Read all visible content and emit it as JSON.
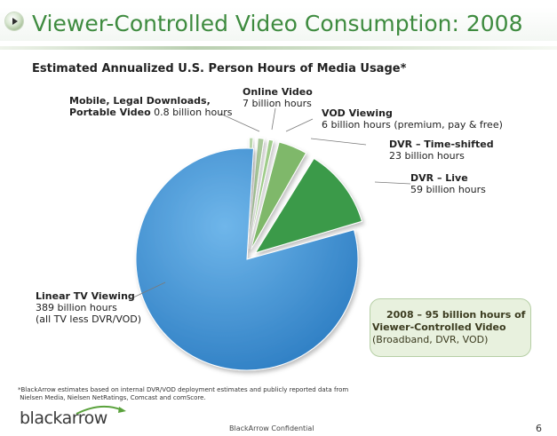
{
  "slide": {
    "title": "Viewer-Controlled Video Consumption: 2008",
    "subtitle": "Estimated Annualized U.S. Person Hours of Media Usage*",
    "footnote_line1": "*BlackArrow estimates based on internal DVR/VOD deployment estimates and publicly reported data from",
    "footnote_line2": "Nielsen Media, Nielsen NetRatings, Comcast and comScore.",
    "logo_text": "blackarrow",
    "confidential": "BlackArrow Confidential",
    "page_number": "6"
  },
  "labels": {
    "mobile_title_1": "Mobile, Legal Downloads,",
    "mobile_title_2": "Portable Video",
    "mobile_value": "0.8 billion hours",
    "online_title": "Online Video",
    "online_value": "7 billion hours",
    "vod_title": "VOD Viewing",
    "vod_value": "6 billion hours (premium, pay & free)",
    "dvr_shift_title": "DVR – Time-shifted",
    "dvr_shift_value": "23 billion hours",
    "dvr_live_title": "DVR – Live",
    "dvr_live_value": "59 billion hours",
    "linear_title": "Linear TV Viewing",
    "linear_value": "389 billion hours",
    "linear_note": "(all TV less DVR/VOD)"
  },
  "callout": {
    "line1": "2008 – 95 billion hours of",
    "line2": "Viewer-Controlled Video",
    "line3": "(Broadband, DVR, VOD)"
  },
  "colors": {
    "title_green": "#3e8b3f",
    "linear_blue": "#3f8fd0",
    "dvr_live": "#3a9a48",
    "dvr_shift": "#7fb86b",
    "vod": "#9fcc8a",
    "online": "#a9c99a",
    "mobile": "#b9d6ab"
  },
  "chart_data": {
    "type": "pie",
    "title": "Estimated Annualized U.S. Person Hours of Media Usage*",
    "unit": "billion hours",
    "slices": [
      {
        "label": "Mobile, Legal Downloads, Portable Video",
        "value": 0.8,
        "color": "#b9d6ab"
      },
      {
        "label": "Online Video",
        "value": 7,
        "color": "#a9c99a"
      },
      {
        "label": "VOD Viewing",
        "value": 6,
        "color": "#9fcc8a"
      },
      {
        "label": "DVR – Time-shifted",
        "value": 23,
        "color": "#7fb86b"
      },
      {
        "label": "DVR – Live",
        "value": 59,
        "color": "#3a9a48"
      },
      {
        "label": "Linear TV Viewing",
        "value": 389,
        "color": "#3f8fd0"
      }
    ],
    "exploded": [
      "Mobile, Legal Downloads, Portable Video",
      "Online Video",
      "VOD Viewing",
      "DVR – Time-shifted",
      "DVR – Live"
    ]
  }
}
